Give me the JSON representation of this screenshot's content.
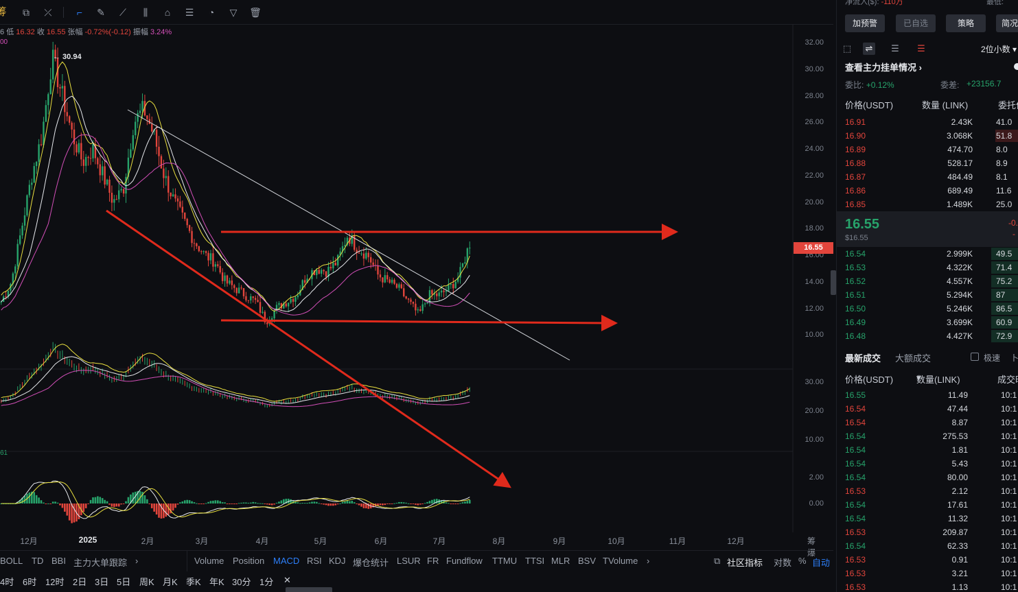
{
  "toolbar": {
    "icons": [
      "cursor-icon",
      "measure-icon",
      "ruler-icon",
      "trend-icon",
      "candle-icon",
      "shape-icon",
      "text-icon",
      "magnet-icon",
      "filter-icon",
      "trash-icon"
    ],
    "brand_fragment": "筹"
  },
  "ohlc": {
    "prefix": "6",
    "low_label": "低",
    "low": "16.32",
    "close_label": "收",
    "close": "16.55",
    "change_label": "张幅",
    "change": "-0.72%(-0.12)",
    "amp_label": "振幅",
    "amp": "3.24%",
    "ma_hint": "00",
    "macd_hint": "61"
  },
  "price_axis": {
    "labels": [
      "32.00",
      "30.00",
      "28.00",
      "26.00",
      "24.00",
      "22.00",
      "20.00",
      "18.00",
      "16.00",
      "14.00",
      "12.00",
      "10.00"
    ],
    "current": "16.55",
    "high_marker": "30.94"
  },
  "sub_axis_1": [
    "30.00",
    "20.00",
    "10.00"
  ],
  "sub_axis_2": [
    "2.00",
    "0.00"
  ],
  "time_axis": {
    "labels": [
      "12月",
      "2025",
      "2月",
      "3月",
      "4月",
      "5月",
      "6月",
      "7月",
      "8月",
      "9月",
      "10月",
      "11月",
      "12月"
    ],
    "suffix": "筹爆"
  },
  "indicators": {
    "left": [
      "BOLL",
      "TD",
      "BBI",
      "主力大单跟踪"
    ],
    "right": [
      "Volume",
      "Position",
      "MACD",
      "RSI",
      "KDJ",
      "爆仓统计",
      "LSUR",
      "FR",
      "Fundflow",
      "TTMU",
      "TTSI",
      "MLR",
      "BSV",
      "TVolume"
    ],
    "active": "MACD",
    "community": "社区指标",
    "log": "对数",
    "percent": "%",
    "auto": "自动"
  },
  "periods": [
    "4时",
    "6时",
    "12时",
    "2日",
    "3日",
    "5日",
    "周K",
    "月K",
    "季K",
    "年K",
    "30分",
    "1分"
  ],
  "chart_data": {
    "type": "candlestick",
    "pair": "LINK/USDT",
    "title": "",
    "x_range": [
      "12月",
      "12月"
    ],
    "ylim": [
      9,
      32.5
    ],
    "current_price": 16.55,
    "high": 30.94,
    "annotations": [
      {
        "type": "trendline",
        "color": "#ffffff",
        "from": [
          "1月下旬",
          27.0
        ],
        "to": [
          "8月中旬",
          9.3
        ]
      },
      {
        "type": "arrow",
        "color": "#e02a1c",
        "from": [
          "3月初",
          17.8
        ],
        "to": [
          "11月初",
          17.8
        ]
      },
      {
        "type": "arrow",
        "color": "#e02a1c",
        "from": [
          "4月初",
          11.0
        ],
        "to": [
          "10月初",
          11.0
        ]
      },
      {
        "type": "arrow",
        "color": "#e02a1c",
        "from": [
          "1月中旬",
          19.5
        ],
        "to": [
          "8月中旬",
          "below 9"
        ]
      }
    ],
    "series": [
      {
        "name": "price",
        "approx_path": [
          [
            0,
            12.5
          ],
          [
            1,
            14
          ],
          [
            2,
            18
          ],
          [
            3,
            22
          ],
          [
            4,
            25
          ],
          [
            5,
            30.9
          ],
          [
            6,
            28
          ],
          [
            7,
            25
          ],
          [
            8,
            23
          ],
          [
            9,
            24
          ],
          [
            10,
            22
          ],
          [
            11,
            20
          ],
          [
            12,
            21
          ],
          [
            13,
            26
          ],
          [
            14,
            27
          ],
          [
            15,
            25
          ],
          [
            16,
            22
          ],
          [
            17,
            20
          ],
          [
            18,
            18.5
          ],
          [
            19,
            17
          ],
          [
            20,
            16
          ],
          [
            21,
            15.5
          ],
          [
            22,
            14
          ],
          [
            23,
            13.5
          ],
          [
            24,
            13
          ],
          [
            25,
            12.5
          ],
          [
            26,
            11
          ],
          [
            27,
            12
          ],
          [
            28,
            12.5
          ],
          [
            29,
            13
          ],
          [
            30,
            14.5
          ],
          [
            31,
            15
          ],
          [
            32,
            14.8
          ],
          [
            33,
            15.5
          ],
          [
            34,
            17.5
          ],
          [
            35,
            16.5
          ],
          [
            36,
            16
          ],
          [
            37,
            14.5
          ],
          [
            38,
            14
          ],
          [
            39,
            13.5
          ],
          [
            40,
            12.5
          ],
          [
            41,
            11.5
          ],
          [
            42,
            13
          ],
          [
            43,
            13
          ],
          [
            44,
            13.5
          ],
          [
            45,
            14.5
          ],
          [
            46,
            16.9
          ]
        ]
      }
    ]
  },
  "right_panel": {
    "net_flow_label": "净流入($):",
    "net_flow_value": "-110万",
    "latest_label": "最低:",
    "buttons": [
      {
        "label": "加预警",
        "dim": false
      },
      {
        "label": "已自选",
        "dim": true
      },
      {
        "label": "策略",
        "dim": false
      },
      {
        "label": "简况",
        "dim": false
      }
    ],
    "decimals": "2位小数",
    "view_depth": "查看主力挂单情况",
    "ratio_label": "委比:",
    "ratio_value": "+0.12%",
    "diff_label": "委差:",
    "diff_value": "+23156.7",
    "ob_header": {
      "price": "价格(USDT)",
      "qty": "数量 (LINK)",
      "total": "委托价"
    },
    "asks": [
      {
        "p": "16.91",
        "q": "2.43K",
        "t": "41.0",
        "w": 0
      },
      {
        "p": "16.90",
        "q": "3.068K",
        "t": "51.8",
        "w": 34
      },
      {
        "p": "16.89",
        "q": "474.70",
        "t": "8.0",
        "w": 0
      },
      {
        "p": "16.88",
        "q": "528.17",
        "t": "8.9",
        "w": 0
      },
      {
        "p": "16.87",
        "q": "484.49",
        "t": "8.1",
        "w": 0
      },
      {
        "p": "16.86",
        "q": "689.49",
        "t": "11.6",
        "w": 0
      },
      {
        "p": "16.85",
        "q": "1.489K",
        "t": "25.0",
        "w": 0
      }
    ],
    "mid_price": "16.55",
    "mid_usd": "$16.55",
    "mid_change": "-0.",
    "mid_change2": "-",
    "bids": [
      {
        "p": "16.54",
        "q": "2.999K",
        "t": "49.5",
        "w": 40
      },
      {
        "p": "16.53",
        "q": "4.322K",
        "t": "71.4",
        "w": 40
      },
      {
        "p": "16.52",
        "q": "4.557K",
        "t": "75.2",
        "w": 40
      },
      {
        "p": "16.51",
        "q": "5.294K",
        "t": "87",
        "w": 40
      },
      {
        "p": "16.50",
        "q": "5.246K",
        "t": "86.5",
        "w": 40
      },
      {
        "p": "16.49",
        "q": "3.699K",
        "t": "60.9",
        "w": 40
      },
      {
        "p": "16.48",
        "q": "4.427K",
        "t": "72.9",
        "w": 40
      }
    ],
    "trades_tab_latest": "最新成交",
    "trades_tab_large": "大额成交",
    "speed_label": "极速",
    "speed_extra": "卜",
    "tr_header": {
      "price": "价格(USDT)",
      "qty": "数量(LINK)",
      "time": "成交时"
    },
    "trades": [
      {
        "p": "16.55",
        "q": "11.49",
        "t": "10:1",
        "side": "buy"
      },
      {
        "p": "16.54",
        "q": "47.44",
        "t": "10:1",
        "side": "sell"
      },
      {
        "p": "16.54",
        "q": "8.87",
        "t": "10:1",
        "side": "sell"
      },
      {
        "p": "16.54",
        "q": "275.53",
        "t": "10:1",
        "side": "buy"
      },
      {
        "p": "16.54",
        "q": "1.81",
        "t": "10:1",
        "side": "buy"
      },
      {
        "p": "16.54",
        "q": "5.43",
        "t": "10:1",
        "side": "buy"
      },
      {
        "p": "16.54",
        "q": "80.00",
        "t": "10:1",
        "side": "buy"
      },
      {
        "p": "16.53",
        "q": "2.12",
        "t": "10:1",
        "side": "sell"
      },
      {
        "p": "16.54",
        "q": "17.61",
        "t": "10:1",
        "side": "buy"
      },
      {
        "p": "16.54",
        "q": "11.32",
        "t": "10:1",
        "side": "buy"
      },
      {
        "p": "16.53",
        "q": "209.87",
        "t": "10:1",
        "side": "sell"
      },
      {
        "p": "16.54",
        "q": "62.33",
        "t": "10:1",
        "side": "buy"
      },
      {
        "p": "16.53",
        "q": "0.91",
        "t": "10:1",
        "side": "sell"
      },
      {
        "p": "16.53",
        "q": "3.21",
        "t": "10:1",
        "side": "sell"
      },
      {
        "p": "16.53",
        "q": "1.13",
        "t": "10:1",
        "side": "sell"
      }
    ]
  }
}
